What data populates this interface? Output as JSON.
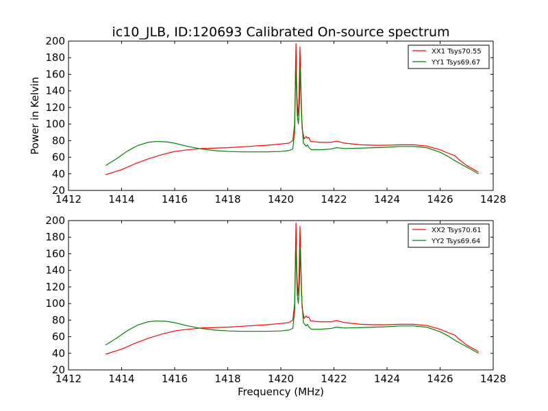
{
  "figure": {
    "title": "ic10_JLB, ID:120693 Calibrated On-source spectrum"
  },
  "chart_data": [
    {
      "type": "line",
      "title": "ic10_JLB, ID:120693 Calibrated On-source spectrum",
      "xlabel": "",
      "ylabel": "Power in Kelvin",
      "xlim": [
        1412,
        1428
      ],
      "ylim": [
        20,
        200
      ],
      "xticks": [
        1412,
        1414,
        1416,
        1418,
        1420,
        1422,
        1424,
        1426,
        1428
      ],
      "yticks": [
        20,
        40,
        60,
        80,
        100,
        120,
        140,
        160,
        180,
        200
      ],
      "legend_position": "top-right",
      "grid": false,
      "series": [
        {
          "name": "XX1 Tsys70.55",
          "color": "#ff0000",
          "points": [
            [
              1413.4,
              39
            ],
            [
              1414.0,
              45
            ],
            [
              1414.5,
              52
            ],
            [
              1415.0,
              58
            ],
            [
              1415.5,
              63
            ],
            [
              1416.0,
              67
            ],
            [
              1416.5,
              69
            ],
            [
              1417.0,
              70.5
            ],
            [
              1417.5,
              71
            ],
            [
              1418.0,
              71.5
            ],
            [
              1418.5,
              72.5
            ],
            [
              1419.0,
              73.5
            ],
            [
              1419.5,
              74.5
            ],
            [
              1420.0,
              76
            ],
            [
              1420.3,
              77
            ],
            [
              1420.45,
              80
            ],
            [
              1420.52,
              100
            ],
            [
              1420.57,
              197
            ],
            [
              1420.6,
              140
            ],
            [
              1420.64,
              110
            ],
            [
              1420.68,
              125
            ],
            [
              1420.72,
              193
            ],
            [
              1420.76,
              140
            ],
            [
              1420.8,
              95
            ],
            [
              1420.88,
              82
            ],
            [
              1420.95,
              85
            ],
            [
              1421.0,
              83
            ],
            [
              1421.05,
              84
            ],
            [
              1421.12,
              79
            ],
            [
              1421.5,
              78
            ],
            [
              1421.9,
              78
            ],
            [
              1422.1,
              79.5
            ],
            [
              1422.4,
              77
            ],
            [
              1423.0,
              75
            ],
            [
              1423.5,
              74.5
            ],
            [
              1424.0,
              74.5
            ],
            [
              1424.5,
              75
            ],
            [
              1425.0,
              75
            ],
            [
              1425.5,
              73.5
            ],
            [
              1426.0,
              69
            ],
            [
              1426.3,
              65
            ],
            [
              1426.55,
              62
            ],
            [
              1426.62,
              60
            ],
            [
              1426.68,
              58
            ],
            [
              1427.0,
              50
            ],
            [
              1427.45,
              42
            ]
          ]
        },
        {
          "name": "YY1 Tsys69.67",
          "color": "#008000",
          "points": [
            [
              1413.4,
              50
            ],
            [
              1413.8,
              58
            ],
            [
              1414.2,
              67
            ],
            [
              1414.6,
              74
            ],
            [
              1415.0,
              78
            ],
            [
              1415.3,
              79
            ],
            [
              1415.7,
              78.5
            ],
            [
              1416.0,
              77
            ],
            [
              1416.5,
              73
            ],
            [
              1417.0,
              70
            ],
            [
              1417.5,
              68
            ],
            [
              1418.0,
              67
            ],
            [
              1418.5,
              66.5
            ],
            [
              1419.0,
              66.5
            ],
            [
              1419.5,
              66.5
            ],
            [
              1420.0,
              67
            ],
            [
              1420.3,
              68
            ],
            [
              1420.45,
              70
            ],
            [
              1420.52,
              90
            ],
            [
              1420.56,
              170
            ],
            [
              1420.62,
              110
            ],
            [
              1420.66,
              100
            ],
            [
              1420.7,
              125
            ],
            [
              1420.73,
              167
            ],
            [
              1420.78,
              110
            ],
            [
              1420.85,
              77
            ],
            [
              1420.95,
              73
            ],
            [
              1421.0,
              75
            ],
            [
              1421.05,
              72
            ],
            [
              1421.15,
              69
            ],
            [
              1421.5,
              69
            ],
            [
              1421.9,
              70
            ],
            [
              1422.1,
              71.5
            ],
            [
              1422.4,
              70.5
            ],
            [
              1423.0,
              71
            ],
            [
              1423.5,
              71.5
            ],
            [
              1424.0,
              72
            ],
            [
              1424.5,
              73
            ],
            [
              1425.0,
              73
            ],
            [
              1425.5,
              71.5
            ],
            [
              1426.0,
              66
            ],
            [
              1426.3,
              61
            ],
            [
              1426.6,
              55
            ],
            [
              1427.0,
              48
            ],
            [
              1427.45,
              40
            ]
          ]
        }
      ]
    },
    {
      "type": "line",
      "title": "",
      "xlabel": "Frequency (MHz)",
      "ylabel": "",
      "xlim": [
        1412,
        1428
      ],
      "ylim": [
        20,
        200
      ],
      "xticks": [
        1412,
        1414,
        1416,
        1418,
        1420,
        1422,
        1424,
        1426,
        1428
      ],
      "yticks": [
        20,
        40,
        60,
        80,
        100,
        120,
        140,
        160,
        180,
        200
      ],
      "legend_position": "top-right",
      "grid": false,
      "series": [
        {
          "name": "XX2 Tsys70.61",
          "color": "#ff0000",
          "points": [
            [
              1413.4,
              39
            ],
            [
              1414.0,
              45
            ],
            [
              1414.5,
              52
            ],
            [
              1415.0,
              58
            ],
            [
              1415.5,
              63
            ],
            [
              1416.0,
              67
            ],
            [
              1416.5,
              69
            ],
            [
              1417.0,
              70.5
            ],
            [
              1417.5,
              71
            ],
            [
              1418.0,
              71.5
            ],
            [
              1418.5,
              72.5
            ],
            [
              1419.0,
              73.5
            ],
            [
              1419.5,
              74.5
            ],
            [
              1420.0,
              76
            ],
            [
              1420.3,
              77
            ],
            [
              1420.45,
              80
            ],
            [
              1420.52,
              100
            ],
            [
              1420.57,
              197
            ],
            [
              1420.6,
              140
            ],
            [
              1420.64,
              110
            ],
            [
              1420.68,
              125
            ],
            [
              1420.72,
              193
            ],
            [
              1420.76,
              140
            ],
            [
              1420.8,
              95
            ],
            [
              1420.88,
              82
            ],
            [
              1420.95,
              85
            ],
            [
              1421.0,
              83
            ],
            [
              1421.05,
              84
            ],
            [
              1421.12,
              79
            ],
            [
              1421.5,
              78
            ],
            [
              1421.9,
              78
            ],
            [
              1422.1,
              79.5
            ],
            [
              1422.4,
              77
            ],
            [
              1423.0,
              75
            ],
            [
              1423.5,
              74.5
            ],
            [
              1424.0,
              74.5
            ],
            [
              1424.5,
              75
            ],
            [
              1425.0,
              75
            ],
            [
              1425.5,
              73.5
            ],
            [
              1426.0,
              69
            ],
            [
              1426.3,
              65
            ],
            [
              1426.55,
              62
            ],
            [
              1426.62,
              60
            ],
            [
              1426.68,
              58
            ],
            [
              1427.0,
              50
            ],
            [
              1427.45,
              42
            ]
          ]
        },
        {
          "name": "YY2 Tsys69.64",
          "color": "#008000",
          "points": [
            [
              1413.4,
              50
            ],
            [
              1413.8,
              58
            ],
            [
              1414.2,
              67
            ],
            [
              1414.6,
              74
            ],
            [
              1415.0,
              78
            ],
            [
              1415.3,
              79
            ],
            [
              1415.7,
              78.5
            ],
            [
              1416.0,
              77
            ],
            [
              1416.5,
              73
            ],
            [
              1417.0,
              70
            ],
            [
              1417.5,
              68
            ],
            [
              1418.0,
              67
            ],
            [
              1418.5,
              66.5
            ],
            [
              1419.0,
              66.5
            ],
            [
              1419.5,
              66.5
            ],
            [
              1420.0,
              67
            ],
            [
              1420.3,
              68
            ],
            [
              1420.45,
              70
            ],
            [
              1420.52,
              90
            ],
            [
              1420.56,
              170
            ],
            [
              1420.62,
              110
            ],
            [
              1420.66,
              100
            ],
            [
              1420.7,
              125
            ],
            [
              1420.73,
              167
            ],
            [
              1420.78,
              110
            ],
            [
              1420.85,
              77
            ],
            [
              1420.95,
              73
            ],
            [
              1421.0,
              75
            ],
            [
              1421.05,
              72
            ],
            [
              1421.15,
              69
            ],
            [
              1421.5,
              69
            ],
            [
              1421.9,
              70
            ],
            [
              1422.1,
              71.5
            ],
            [
              1422.4,
              70.5
            ],
            [
              1423.0,
              71
            ],
            [
              1423.5,
              71.5
            ],
            [
              1424.0,
              72
            ],
            [
              1424.5,
              73
            ],
            [
              1425.0,
              73
            ],
            [
              1425.5,
              71.5
            ],
            [
              1426.0,
              66
            ],
            [
              1426.3,
              61
            ],
            [
              1426.6,
              55
            ],
            [
              1427.0,
              48
            ],
            [
              1427.45,
              40
            ]
          ]
        }
      ]
    }
  ]
}
